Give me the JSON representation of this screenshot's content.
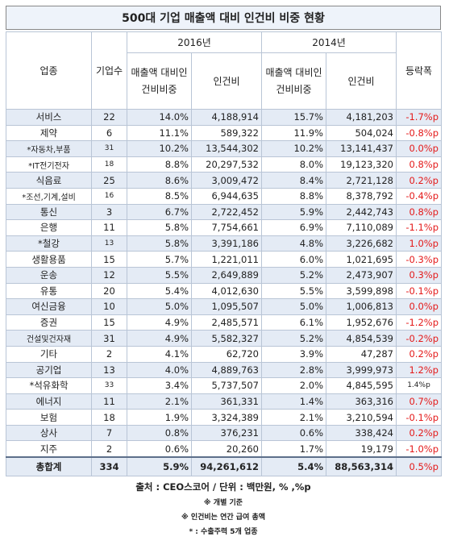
{
  "title": "500대 기업 매출액 대비 인건비 비중 현황",
  "headers": {
    "industry": "업종",
    "count": "기업수",
    "year_2016": "2016년",
    "year_2014": "2014년",
    "ratio": "매출액 대비인건비비중",
    "labor_cost": "인건비",
    "change": "등락폭"
  },
  "rows": [
    {
      "industry": "서비스",
      "count": "22",
      "ratio16": "14.0%",
      "cost16": "4,188,914",
      "ratio14": "15.7%",
      "cost14": "4,181,203",
      "change": "-1.7%p"
    },
    {
      "industry": "제약",
      "count": "6",
      "ratio16": "11.1%",
      "cost16": "589,322",
      "ratio14": "11.9%",
      "cost14": "504,024",
      "change": "-0.8%p"
    },
    {
      "industry": "*자동차,부품",
      "count": "31",
      "ratio16": "10.2%",
      "cost16": "13,544,302",
      "ratio14": "10.2%",
      "cost14": "13,141,437",
      "change": "0.0%p"
    },
    {
      "industry": "*IT전기전자",
      "count": "18",
      "ratio16": "8.8%",
      "cost16": "20,297,532",
      "ratio14": "8.0%",
      "cost14": "19,123,320",
      "change": "0.8%p"
    },
    {
      "industry": "식음료",
      "count": "25",
      "ratio16": "8.6%",
      "cost16": "3,009,472",
      "ratio14": "8.4%",
      "cost14": "2,721,128",
      "change": "0.2%p"
    },
    {
      "industry": "*조선,기계,설비",
      "count": "16",
      "ratio16": "8.5%",
      "cost16": "6,944,635",
      "ratio14": "8.8%",
      "cost14": "8,378,792",
      "change": "-0.4%p"
    },
    {
      "industry": "통신",
      "count": "3",
      "ratio16": "6.7%",
      "cost16": "2,722,452",
      "ratio14": "5.9%",
      "cost14": "2,442,743",
      "change": "0.8%p"
    },
    {
      "industry": "은행",
      "count": "11",
      "ratio16": "5.8%",
      "cost16": "7,754,661",
      "ratio14": "6.9%",
      "cost14": "7,110,089",
      "change": "-1.1%p"
    },
    {
      "industry": "*철강",
      "count": "13",
      "ratio16": "5.8%",
      "cost16": "3,391,186",
      "ratio14": "4.8%",
      "cost14": "3,226,682",
      "change": "1.0%p"
    },
    {
      "industry": "생활용품",
      "count": "15",
      "ratio16": "5.7%",
      "cost16": "1,221,011",
      "ratio14": "6.0%",
      "cost14": "1,021,695",
      "change": "-0.3%p"
    },
    {
      "industry": "운송",
      "count": "12",
      "ratio16": "5.5%",
      "cost16": "2,649,889",
      "ratio14": "5.2%",
      "cost14": "2,473,907",
      "change": "0.3%p"
    },
    {
      "industry": "유통",
      "count": "20",
      "ratio16": "5.4%",
      "cost16": "4,012,630",
      "ratio14": "5.5%",
      "cost14": "3,599,898",
      "change": "-0.1%p"
    },
    {
      "industry": "여신금융",
      "count": "10",
      "ratio16": "5.0%",
      "cost16": "1,095,507",
      "ratio14": "5.0%",
      "cost14": "1,006,813",
      "change": "0.0%p"
    },
    {
      "industry": "증권",
      "count": "15",
      "ratio16": "4.9%",
      "cost16": "2,485,571",
      "ratio14": "6.1%",
      "cost14": "1,952,676",
      "change": "-1.2%p"
    },
    {
      "industry": "건설및건자재",
      "count": "31",
      "ratio16": "4.9%",
      "cost16": "5,582,327",
      "ratio14": "5.2%",
      "cost14": "4,854,539",
      "change": "-0.2%p"
    },
    {
      "industry": "기타",
      "count": "2",
      "ratio16": "4.1%",
      "cost16": "62,720",
      "ratio14": "3.9%",
      "cost14": "47,287",
      "change": "0.2%p"
    },
    {
      "industry": "공기업",
      "count": "13",
      "ratio16": "4.0%",
      "cost16": "4,889,763",
      "ratio14": "2.8%",
      "cost14": "3,999,973",
      "change": "1.2%p"
    },
    {
      "industry": "*석유화학",
      "count": "33",
      "ratio16": "3.4%",
      "cost16": "5,737,507",
      "ratio14": "2.0%",
      "cost14": "4,845,595",
      "change": "1.4%p"
    },
    {
      "industry": "에너지",
      "count": "11",
      "ratio16": "2.1%",
      "cost16": "361,331",
      "ratio14": "1.4%",
      "cost14": "363,316",
      "change": "0.7%p"
    },
    {
      "industry": "보험",
      "count": "18",
      "ratio16": "1.9%",
      "cost16": "3,324,389",
      "ratio14": "2.1%",
      "cost14": "3,210,594",
      "change": "-0.1%p"
    },
    {
      "industry": "상사",
      "count": "7",
      "ratio16": "0.8%",
      "cost16": "376,231",
      "ratio14": "0.6%",
      "cost14": "338,424",
      "change": "0.2%p"
    },
    {
      "industry": "지주",
      "count": "2",
      "ratio16": "0.6%",
      "cost16": "20,260",
      "ratio14": "1.7%",
      "cost14": "19,179",
      "change": "-1.0%p"
    }
  ],
  "total": {
    "industry": "총합계",
    "count": "334",
    "ratio16": "5.9%",
    "cost16": "94,261,612",
    "ratio14": "5.4%",
    "cost14": "88,563,314",
    "change": "0.5%p"
  },
  "footer": {
    "source": "출처 : CEO스코어 / 단위 : 백만원, % ,%p",
    "note1": "※ 개별 기준",
    "note2": "※ 인건비는 연간 급여 총액",
    "note3": "* : 수출주력 5개 업종"
  }
}
